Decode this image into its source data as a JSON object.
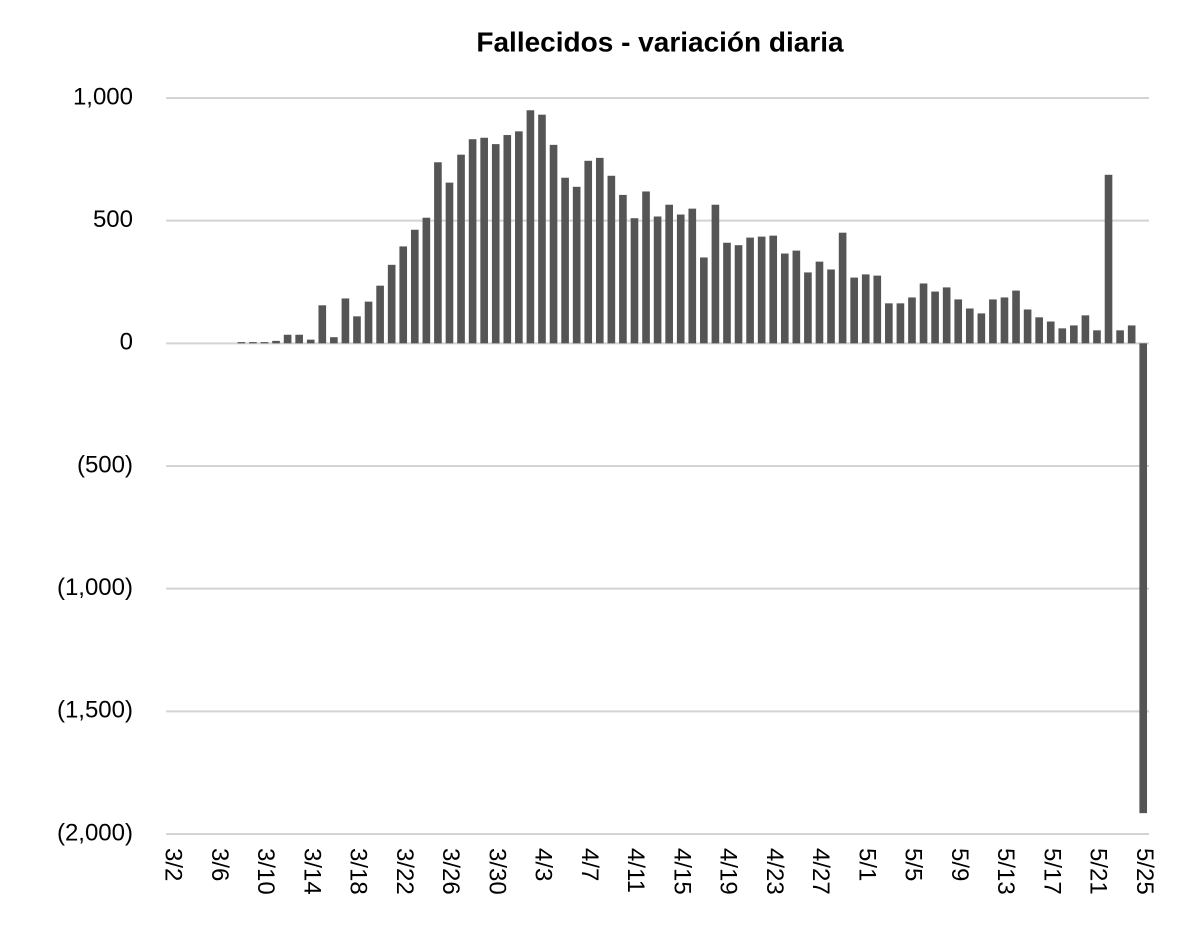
{
  "chart_data": {
    "type": "bar",
    "title": "Fallecidos - variación diaria",
    "categories": [
      "3/2",
      null,
      null,
      null,
      "3/6",
      null,
      null,
      null,
      "3/10",
      null,
      null,
      null,
      "3/14",
      null,
      null,
      null,
      "3/18",
      null,
      null,
      null,
      "3/22",
      null,
      null,
      null,
      "3/26",
      null,
      null,
      null,
      "3/30",
      null,
      null,
      null,
      "4/3",
      null,
      null,
      null,
      "4/7",
      null,
      null,
      null,
      "4/11",
      null,
      null,
      null,
      "4/15",
      null,
      null,
      null,
      "4/19",
      null,
      null,
      null,
      "4/23",
      null,
      null,
      null,
      "4/27",
      null,
      null,
      null,
      "5/1",
      null,
      null,
      null,
      "5/5",
      null,
      null,
      null,
      "5/9",
      null,
      null,
      null,
      "5/13",
      null,
      null,
      null,
      "5/17",
      null,
      null,
      null,
      "5/21",
      null,
      null,
      null,
      "5/25"
    ],
    "values": [
      0,
      0,
      0,
      0,
      0,
      0,
      5,
      5,
      5,
      10,
      35,
      35,
      15,
      155,
      25,
      183,
      110,
      170,
      235,
      320,
      395,
      463,
      512,
      738,
      655,
      769,
      832,
      838,
      812,
      849,
      864,
      950,
      932,
      809,
      675,
      638,
      744,
      756,
      683,
      605,
      510,
      619,
      517,
      565,
      525,
      549,
      350,
      565,
      410,
      400,
      431,
      435,
      439,
      366,
      378,
      289,
      333,
      301,
      451,
      268,
      281,
      276,
      163,
      163,
      187,
      244,
      211,
      228,
      179,
      142,
      122,
      179,
      187,
      215,
      138,
      106,
      89,
      61,
      73,
      114,
      53,
      687,
      53,
      73,
      -1915
    ],
    "color": "#555555",
    "ylim": [
      -2000,
      1000
    ],
    "yticks": [
      {
        "value": 1000,
        "label": "1,000"
      },
      500,
      0,
      {
        "value": -500,
        "label": "(500)"
      },
      {
        "value": -1000,
        "label": "(1,000)"
      },
      {
        "value": -1500,
        "label": "(1,500)"
      },
      {
        "value": -2000,
        "label": "(2,000)"
      }
    ],
    "grid": true
  }
}
